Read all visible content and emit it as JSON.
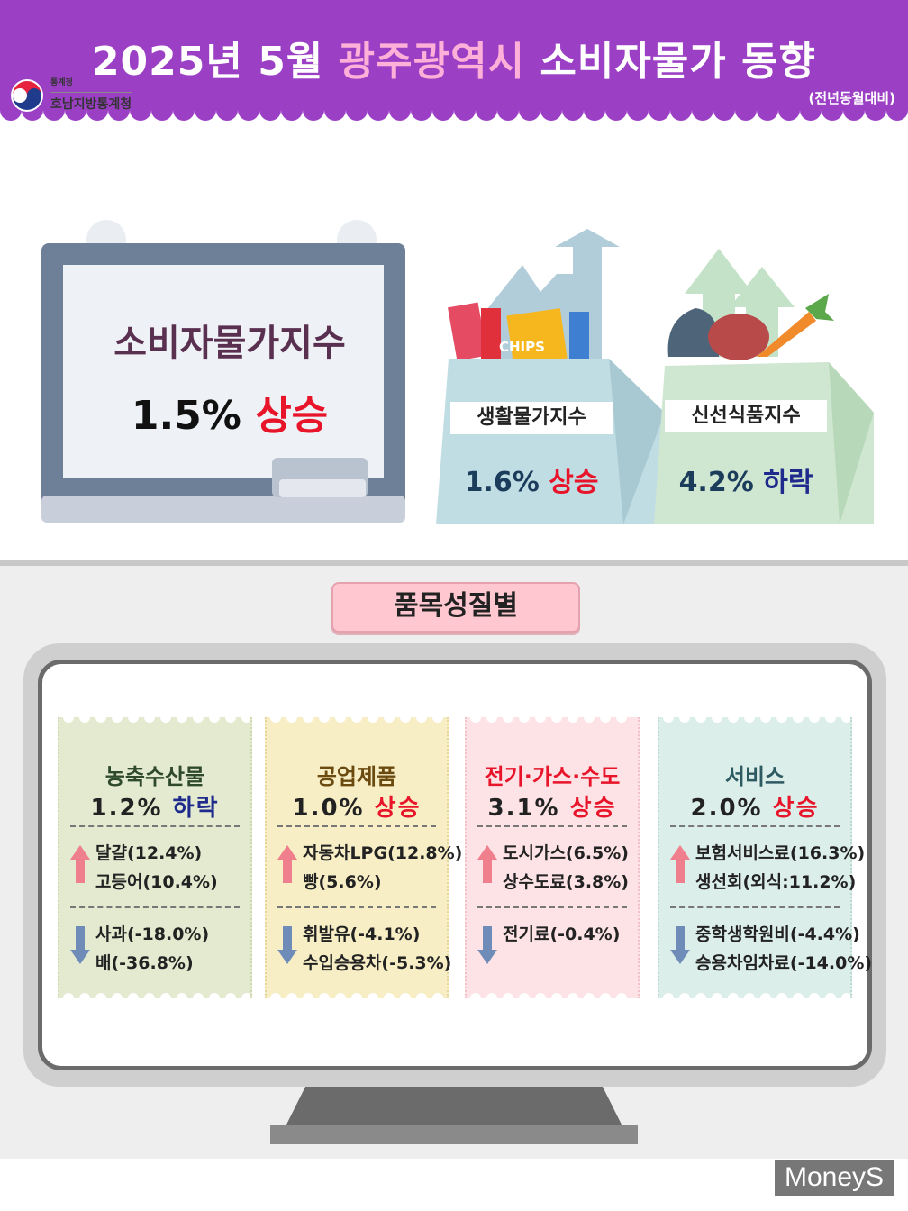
{
  "header": {
    "title_part1": "2025년 5월",
    "title_highlight": "광주광역시",
    "title_part2": "소비자물가 동향",
    "subtitle": "(전년동월대비)",
    "logo_small": "통계청",
    "logo_big": "호남지방통계청"
  },
  "cpi": {
    "label": "소비자물가지수",
    "value": "1.5%",
    "direction": "상승"
  },
  "living_index": {
    "label": "생활물가지수",
    "value": "1.6%",
    "direction": "상승",
    "chips_text": "CHIPS"
  },
  "fresh_index": {
    "label": "신선식품지수",
    "value": "4.2%",
    "direction": "하락"
  },
  "section_tag": "품목성질별",
  "categories": [
    {
      "title": "농축수산물",
      "value": "1.2%",
      "direction": "하락",
      "up": [
        "달걀(12.4%)",
        "고등어(10.4%)"
      ],
      "down": [
        "사과(-18.0%)",
        "배(-36.8%)"
      ]
    },
    {
      "title": "공업제품",
      "value": "1.0%",
      "direction": "상승",
      "up": [
        "자동차LPG(12.8%)",
        "빵(5.6%)"
      ],
      "down": [
        "휘발유(-4.1%)",
        "수입승용차(-5.3%)"
      ]
    },
    {
      "title": "전기·가스·수도",
      "value": "3.1%",
      "direction": "상승",
      "up": [
        "도시가스(6.5%)",
        "상수도료(3.8%)"
      ],
      "down": [
        "전기료(-0.4%)"
      ]
    },
    {
      "title": "서비스",
      "value": "2.0%",
      "direction": "상승",
      "up": [
        "보험서비스료(16.3%)",
        "생선회(외식:11.2%)"
      ],
      "down": [
        "중학생학원비(-4.4%)",
        "승용차임차료(-14.0%)"
      ]
    }
  ],
  "watermark": "MoneyS",
  "colors": {
    "header_purple": "#9b3fc4",
    "rise_red": "#e8142a",
    "fall_navy": "#1e2a8c"
  }
}
